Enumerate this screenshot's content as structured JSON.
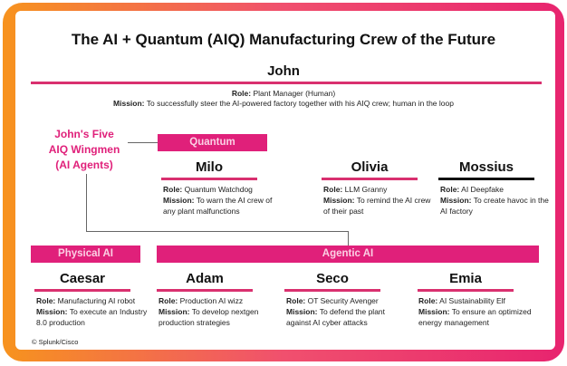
{
  "title": "The AI + Quantum (AIQ) Manufacturing Crew of the Future",
  "labels": {
    "role": "Role:",
    "mission": "Mission:"
  },
  "john": {
    "name": "John",
    "role": "Plant Manager (Human)",
    "mission": "To successfully steer the AI-powered factory together with his AIQ crew; human in the loop"
  },
  "wingmen": [
    "John's Five",
    "AIQ Wingmen",
    "(AI Agents)"
  ],
  "groups": {
    "quantum": "Quantum",
    "physical": "Physical AI",
    "agentic": "Agentic AI"
  },
  "agents": [
    {
      "name": "Milo",
      "role": "Quantum Watchdog",
      "mission": "To warn the AI crew of any plant malfunctions"
    },
    {
      "name": "Olivia",
      "role": "LLM Granny",
      "mission": "To remind the AI crew of their past"
    },
    {
      "name": "Mossius",
      "role": "AI Deepfake",
      "mission": "To create havoc in the AI factory"
    },
    {
      "name": "Caesar",
      "role": "Manufacturing AI robot",
      "mission": "To execute an Industry 8.0 production"
    },
    {
      "name": "Adam",
      "role": "Production AI wizz",
      "mission": "To develop nextgen production strategies"
    },
    {
      "name": "Seco",
      "role": "OT Security Avenger",
      "mission": "To defend the plant against AI cyber attacks"
    },
    {
      "name": "Emia",
      "role": "AI Sustainability Elf",
      "mission": "To ensure an optimized energy management"
    }
  ],
  "copyright": "© Splunk/Cisco",
  "colors": {
    "accent": "#e0207a",
    "border_left": "#f7931e",
    "border_right": "#e8246f"
  }
}
